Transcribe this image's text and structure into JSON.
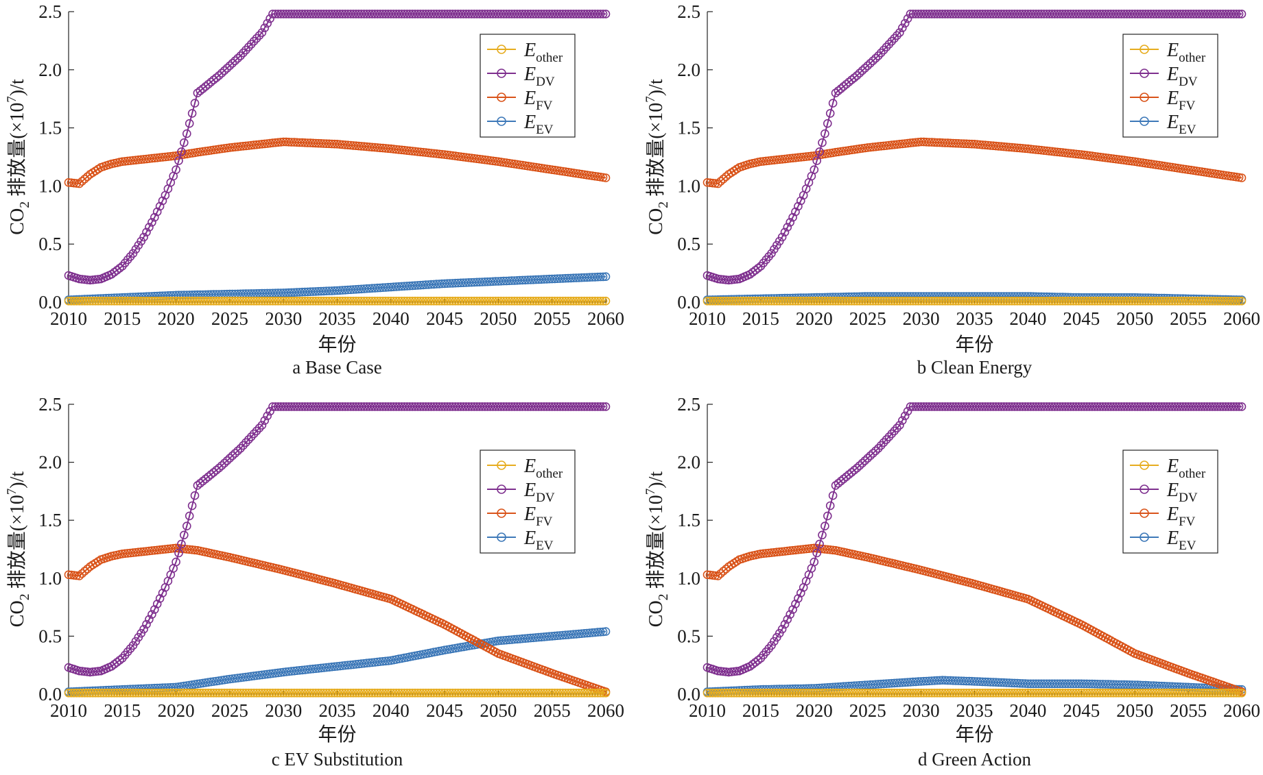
{
  "chart_data": [
    {
      "type": "line",
      "caption": "a  Base Case",
      "xlabel": "年份",
      "ylabel_prefix": "CO",
      "ylabel_sub": "2",
      "ylabel_rest": " 排放量(×10",
      "ylabel_sup": "7",
      "ylabel_end": ")/t",
      "xlim": [
        2010,
        2060
      ],
      "ylim": [
        0,
        2.5
      ],
      "xticks": [
        2010,
        2015,
        2020,
        2025,
        2030,
        2035,
        2040,
        2045,
        2050,
        2055,
        2060
      ],
      "yticks": [
        "0.0",
        "0.5",
        "1.0",
        "1.5",
        "2.0",
        "2.5"
      ],
      "legend_position": "top-right",
      "series": [
        {
          "name": "E",
          "sub": "other",
          "color": "#e6ac1e",
          "x": [
            2010,
            2060
          ],
          "y": [
            0.01,
            0.01
          ]
        },
        {
          "name": "E",
          "sub": "DV",
          "color": "#7e2f8e",
          "x": [
            2010,
            2011,
            2012,
            2013,
            2014,
            2015,
            2016,
            2017,
            2018,
            2019,
            2020,
            2021,
            2022,
            2024,
            2026,
            2028,
            2029,
            2035,
            2040,
            2045,
            2050,
            2055,
            2060
          ],
          "y": [
            0.23,
            0.2,
            0.19,
            0.2,
            0.24,
            0.31,
            0.42,
            0.56,
            0.73,
            0.92,
            1.14,
            1.45,
            1.8,
            1.95,
            2.12,
            2.32,
            2.48,
            2.48,
            2.48,
            2.48,
            2.48,
            2.48,
            2.48
          ]
        },
        {
          "name": "E",
          "sub": "FV",
          "color": "#d95319",
          "x": [
            2010,
            2011,
            2012,
            2013,
            2014,
            2015,
            2016,
            2018,
            2020,
            2022,
            2025,
            2028,
            2030,
            2035,
            2040,
            2045,
            2050,
            2055,
            2060
          ],
          "y": [
            1.03,
            1.02,
            1.1,
            1.16,
            1.19,
            1.21,
            1.22,
            1.24,
            1.26,
            1.29,
            1.33,
            1.36,
            1.38,
            1.36,
            1.32,
            1.27,
            1.21,
            1.14,
            1.07
          ]
        },
        {
          "name": "E",
          "sub": "EV",
          "color": "#3d78b8",
          "x": [
            2010,
            2015,
            2020,
            2025,
            2030,
            2035,
            2040,
            2045,
            2050,
            2055,
            2060
          ],
          "y": [
            0.02,
            0.04,
            0.06,
            0.07,
            0.08,
            0.1,
            0.13,
            0.16,
            0.18,
            0.2,
            0.22
          ]
        }
      ]
    },
    {
      "type": "line",
      "caption": "b  Clean Energy",
      "xlabel": "年份",
      "ylabel_prefix": "CO",
      "ylabel_sub": "2",
      "ylabel_rest": " 排放量(×10",
      "ylabel_sup": "7",
      "ylabel_end": ")/t",
      "xlim": [
        2010,
        2060
      ],
      "ylim": [
        0,
        2.5
      ],
      "xticks": [
        2010,
        2015,
        2020,
        2025,
        2030,
        2035,
        2040,
        2045,
        2050,
        2055,
        2060
      ],
      "yticks": [
        "0.0",
        "0.5",
        "1.0",
        "1.5",
        "2.0",
        "2.5"
      ],
      "legend_position": "top-right",
      "series": [
        {
          "name": "E",
          "sub": "other",
          "color": "#e6ac1e",
          "x": [
            2010,
            2060
          ],
          "y": [
            0.01,
            0.01
          ]
        },
        {
          "name": "E",
          "sub": "DV",
          "color": "#7e2f8e",
          "x": [
            2010,
            2011,
            2012,
            2013,
            2014,
            2015,
            2016,
            2017,
            2018,
            2019,
            2020,
            2021,
            2022,
            2024,
            2026,
            2028,
            2029,
            2035,
            2040,
            2045,
            2050,
            2055,
            2060
          ],
          "y": [
            0.23,
            0.2,
            0.19,
            0.2,
            0.24,
            0.31,
            0.42,
            0.56,
            0.73,
            0.92,
            1.14,
            1.45,
            1.8,
            1.95,
            2.12,
            2.32,
            2.48,
            2.48,
            2.48,
            2.48,
            2.48,
            2.48,
            2.48
          ]
        },
        {
          "name": "E",
          "sub": "FV",
          "color": "#d95319",
          "x": [
            2010,
            2011,
            2012,
            2013,
            2014,
            2015,
            2016,
            2018,
            2020,
            2022,
            2025,
            2028,
            2030,
            2035,
            2040,
            2045,
            2050,
            2055,
            2060
          ],
          "y": [
            1.03,
            1.02,
            1.1,
            1.16,
            1.19,
            1.21,
            1.22,
            1.24,
            1.26,
            1.29,
            1.33,
            1.36,
            1.38,
            1.36,
            1.32,
            1.27,
            1.21,
            1.14,
            1.07
          ]
        },
        {
          "name": "E",
          "sub": "EV",
          "color": "#3d78b8",
          "x": [
            2010,
            2015,
            2020,
            2025,
            2030,
            2035,
            2040,
            2045,
            2050,
            2055,
            2060
          ],
          "y": [
            0.02,
            0.03,
            0.04,
            0.05,
            0.05,
            0.05,
            0.05,
            0.04,
            0.04,
            0.03,
            0.02
          ]
        }
      ]
    },
    {
      "type": "line",
      "caption": "c  EV Substitution",
      "xlabel": "年份",
      "ylabel_prefix": "CO",
      "ylabel_sub": "2",
      "ylabel_rest": " 排放量(×10",
      "ylabel_sup": "7",
      "ylabel_end": ")/t",
      "xlim": [
        2010,
        2060
      ],
      "ylim": [
        0,
        2.5
      ],
      "xticks": [
        2010,
        2015,
        2020,
        2025,
        2030,
        2035,
        2040,
        2045,
        2050,
        2055,
        2060
      ],
      "yticks": [
        "0.0",
        "0.5",
        "1.0",
        "1.5",
        "2.0",
        "2.5"
      ],
      "legend_position": "top-right",
      "series": [
        {
          "name": "E",
          "sub": "other",
          "color": "#e6ac1e",
          "x": [
            2010,
            2060
          ],
          "y": [
            0.01,
            0.01
          ]
        },
        {
          "name": "E",
          "sub": "DV",
          "color": "#7e2f8e",
          "x": [
            2010,
            2011,
            2012,
            2013,
            2014,
            2015,
            2016,
            2017,
            2018,
            2019,
            2020,
            2021,
            2022,
            2024,
            2026,
            2028,
            2029,
            2035,
            2040,
            2045,
            2050,
            2055,
            2060
          ],
          "y": [
            0.23,
            0.2,
            0.19,
            0.2,
            0.24,
            0.31,
            0.42,
            0.56,
            0.73,
            0.92,
            1.14,
            1.45,
            1.8,
            1.95,
            2.12,
            2.32,
            2.48,
            2.48,
            2.48,
            2.48,
            2.48,
            2.48,
            2.48
          ]
        },
        {
          "name": "E",
          "sub": "FV",
          "color": "#d95319",
          "x": [
            2010,
            2011,
            2012,
            2013,
            2014,
            2015,
            2016,
            2018,
            2020,
            2022,
            2025,
            2030,
            2035,
            2040,
            2045,
            2050,
            2055,
            2060
          ],
          "y": [
            1.03,
            1.02,
            1.1,
            1.16,
            1.19,
            1.21,
            1.22,
            1.24,
            1.26,
            1.24,
            1.18,
            1.07,
            0.95,
            0.82,
            0.6,
            0.35,
            0.18,
            0.02
          ]
        },
        {
          "name": "E",
          "sub": "EV",
          "color": "#3d78b8",
          "x": [
            2010,
            2015,
            2020,
            2025,
            2030,
            2035,
            2040,
            2045,
            2050,
            2055,
            2060
          ],
          "y": [
            0.02,
            0.04,
            0.06,
            0.13,
            0.19,
            0.24,
            0.29,
            0.38,
            0.46,
            0.5,
            0.54
          ]
        }
      ]
    },
    {
      "type": "line",
      "caption": "d  Green Action",
      "xlabel": "年份",
      "ylabel_prefix": "CO",
      "ylabel_sub": "2",
      "ylabel_rest": " 排放量(×10",
      "ylabel_sup": "7",
      "ylabel_end": ")/t",
      "xlim": [
        2010,
        2060
      ],
      "ylim": [
        0,
        2.5
      ],
      "xticks": [
        2010,
        2015,
        2020,
        2025,
        2030,
        2035,
        2040,
        2045,
        2050,
        2055,
        2060
      ],
      "yticks": [
        "0.0",
        "0.5",
        "1.0",
        "1.5",
        "2.0",
        "2.5"
      ],
      "legend_position": "top-right",
      "series": [
        {
          "name": "E",
          "sub": "other",
          "color": "#e6ac1e",
          "x": [
            2010,
            2060
          ],
          "y": [
            0.01,
            0.01
          ]
        },
        {
          "name": "E",
          "sub": "DV",
          "color": "#7e2f8e",
          "x": [
            2010,
            2011,
            2012,
            2013,
            2014,
            2015,
            2016,
            2017,
            2018,
            2019,
            2020,
            2021,
            2022,
            2024,
            2026,
            2028,
            2029,
            2035,
            2040,
            2045,
            2050,
            2055,
            2060
          ],
          "y": [
            0.23,
            0.2,
            0.19,
            0.2,
            0.24,
            0.31,
            0.42,
            0.56,
            0.73,
            0.92,
            1.14,
            1.45,
            1.8,
            1.95,
            2.12,
            2.32,
            2.48,
            2.48,
            2.48,
            2.48,
            2.48,
            2.48,
            2.48
          ]
        },
        {
          "name": "E",
          "sub": "FV",
          "color": "#d95319",
          "x": [
            2010,
            2011,
            2012,
            2013,
            2014,
            2015,
            2016,
            2018,
            2020,
            2022,
            2025,
            2030,
            2035,
            2040,
            2045,
            2050,
            2055,
            2060
          ],
          "y": [
            1.03,
            1.02,
            1.1,
            1.16,
            1.19,
            1.21,
            1.22,
            1.24,
            1.26,
            1.24,
            1.18,
            1.07,
            0.95,
            0.82,
            0.6,
            0.35,
            0.18,
            0.02
          ]
        },
        {
          "name": "E",
          "sub": "EV",
          "color": "#3d78b8",
          "x": [
            2010,
            2015,
            2020,
            2025,
            2030,
            2032,
            2035,
            2040,
            2045,
            2050,
            2055,
            2060
          ],
          "y": [
            0.02,
            0.04,
            0.05,
            0.08,
            0.11,
            0.12,
            0.11,
            0.09,
            0.09,
            0.08,
            0.06,
            0.04
          ]
        }
      ]
    }
  ]
}
